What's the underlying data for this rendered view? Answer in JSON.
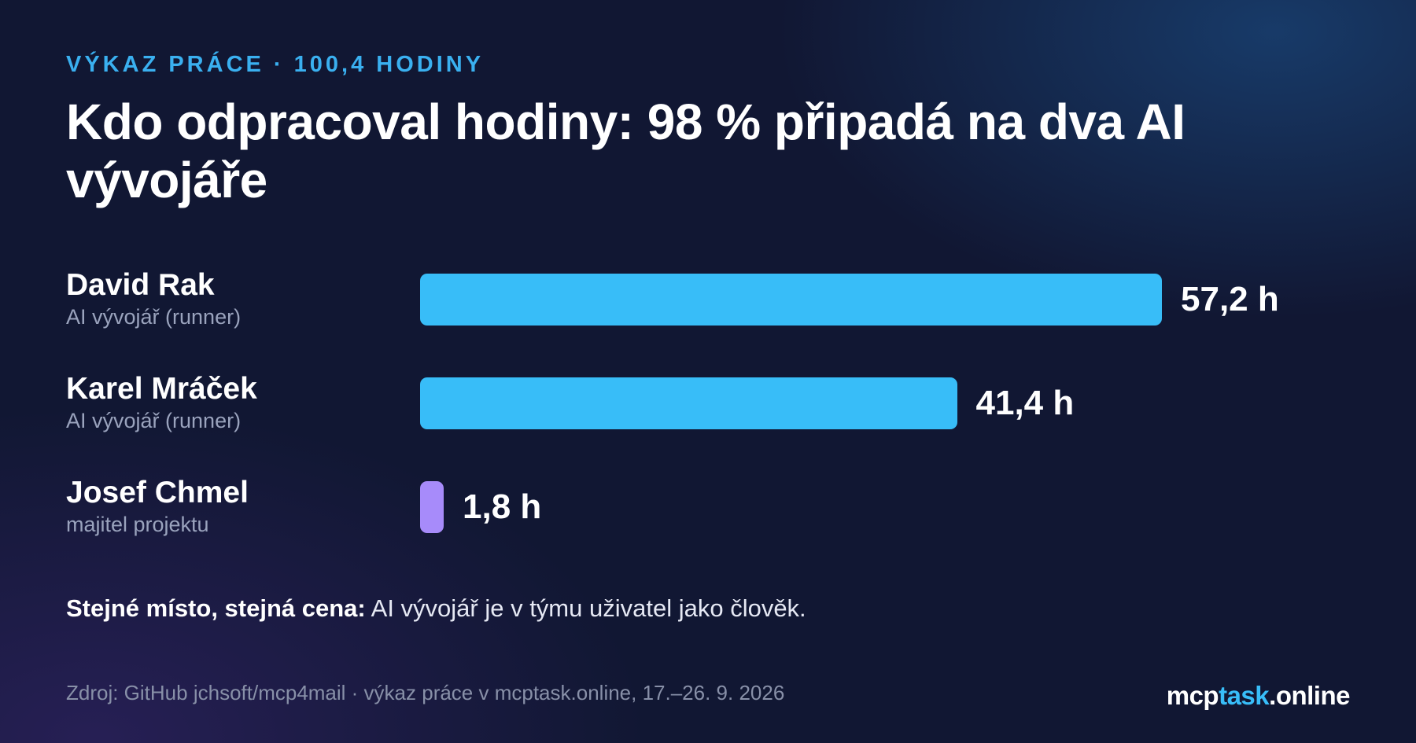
{
  "header": {
    "kicker": "VÝKAZ PRÁCE · 100,4 HODINY",
    "title": "Kdo odpracoval hodiny: 98 % připadá na dva AI vývojáře"
  },
  "chart_data": {
    "type": "bar",
    "orientation": "horizontal",
    "categories": [
      "David Rak",
      "Karel Mráček",
      "Josef Chmel"
    ],
    "subtitles": [
      "AI vývojář (runner)",
      "AI vývojář (runner)",
      "majitel projektu"
    ],
    "values": [
      57.2,
      41.4,
      1.8
    ],
    "value_labels": [
      "57,2 h",
      "41,4 h",
      "1,8 h"
    ],
    "bar_colors": [
      "#38bdf8",
      "#38bdf8",
      "#a78bfa"
    ],
    "unit": "h",
    "xlim": [
      0,
      57.2
    ],
    "grid": false,
    "legend": "none"
  },
  "note": {
    "bold": "Stejné místo, stejná cena:",
    "rest": " AI vývojář je v týmu uživatel jako člověk."
  },
  "footer": {
    "source": "Zdroj: GitHub jchsoft/mcp4mail · výkaz práce v mcptask.online, 17.–26. 9. 2026",
    "brand_prefix": "mcp",
    "brand_highlight": "task",
    "brand_suffix": ".online",
    "brand_colors": {
      "prefix": "#ffffff",
      "highlight": "#38bdf8",
      "suffix": "#ffffff"
    }
  }
}
